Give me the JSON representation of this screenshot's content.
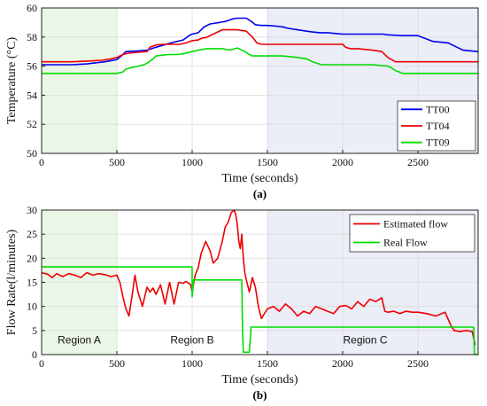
{
  "chart_data": [
    {
      "type": "line",
      "panel_label": "(a)",
      "xlabel": "Time (seconds)",
      "ylabel": "Temperature (°C)",
      "xlim": [
        0,
        2900
      ],
      "ylim": [
        50,
        60
      ],
      "xticks": [
        0,
        500,
        1000,
        1500,
        2000,
        2500
      ],
      "yticks": [
        50,
        52,
        54,
        56,
        58,
        60
      ],
      "grid": true,
      "legend_position": "lower-right",
      "shaded_regions": [
        {
          "x": [
            0,
            500
          ],
          "color": "#eaf7e6"
        },
        {
          "x": [
            1500,
            2900
          ],
          "color": "#ebedf7"
        }
      ],
      "series": [
        {
          "name": "TT00",
          "color": "#0000ee",
          "x": [
            0,
            100,
            200,
            300,
            420,
            500,
            540,
            560,
            640,
            700,
            760,
            860,
            940,
            980,
            1000,
            1040,
            1080,
            1120,
            1180,
            1230,
            1270,
            1300,
            1360,
            1390,
            1420,
            1460,
            1500,
            1560,
            1600,
            1640,
            1700,
            1760,
            1800,
            1850,
            1900,
            2000,
            2050,
            2100,
            2150,
            2200,
            2270,
            2300,
            2400,
            2500,
            2600,
            2700,
            2760,
            2800,
            2900
          ],
          "y": [
            56.1,
            56.1,
            56.1,
            56.15,
            56.3,
            56.45,
            56.8,
            57.0,
            57.05,
            57.1,
            57.3,
            57.6,
            57.8,
            58.1,
            58.2,
            58.3,
            58.7,
            58.9,
            59.0,
            59.1,
            59.25,
            59.3,
            59.3,
            59.1,
            58.85,
            58.8,
            58.8,
            58.75,
            58.7,
            58.6,
            58.5,
            58.4,
            58.35,
            58.3,
            58.3,
            58.2,
            58.2,
            58.2,
            58.2,
            58.2,
            58.2,
            58.15,
            58.1,
            58.1,
            57.7,
            57.6,
            57.3,
            57.1,
            57.0
          ]
        },
        {
          "name": "TT04",
          "color": "#ee0000",
          "x": [
            0,
            100,
            200,
            300,
            400,
            460,
            500,
            540,
            580,
            640,
            700,
            720,
            760,
            800,
            880,
            920,
            960,
            1000,
            1040,
            1060,
            1100,
            1160,
            1200,
            1260,
            1300,
            1360,
            1400,
            1430,
            1460,
            1500,
            1560,
            1600,
            1700,
            1800,
            1900,
            2000,
            2020,
            2050,
            2100,
            2200,
            2260,
            2300,
            2350,
            2400,
            2500,
            2600,
            2700,
            2800,
            2900
          ],
          "y": [
            56.3,
            56.3,
            56.3,
            56.35,
            56.4,
            56.5,
            56.6,
            56.8,
            56.9,
            56.95,
            57.0,
            57.3,
            57.45,
            57.5,
            57.5,
            57.5,
            57.6,
            57.75,
            57.8,
            57.9,
            58.0,
            58.3,
            58.5,
            58.5,
            58.5,
            58.4,
            58.0,
            57.6,
            57.5,
            57.5,
            57.5,
            57.5,
            57.5,
            57.5,
            57.5,
            57.5,
            57.3,
            57.2,
            57.2,
            57.1,
            57.0,
            56.6,
            56.3,
            56.3,
            56.3,
            56.3,
            56.3,
            56.3,
            56.3
          ]
        },
        {
          "name": "TT09",
          "color": "#00dd00",
          "x": [
            0,
            100,
            200,
            300,
            400,
            480,
            500,
            540,
            560,
            600,
            640,
            680,
            700,
            740,
            760,
            800,
            840,
            900,
            940,
            1000,
            1040,
            1100,
            1200,
            1250,
            1300,
            1350,
            1380,
            1400,
            1500,
            1600,
            1700,
            1760,
            1800,
            1860,
            1900,
            2000,
            2100,
            2200,
            2300,
            2320,
            2350,
            2400,
            2500,
            2600,
            2700,
            2800,
            2900
          ],
          "y": [
            55.5,
            55.5,
            55.5,
            55.5,
            55.5,
            55.5,
            55.5,
            55.6,
            55.8,
            55.9,
            56.0,
            56.1,
            56.2,
            56.5,
            56.7,
            56.75,
            56.8,
            56.8,
            56.85,
            57.0,
            57.1,
            57.2,
            57.2,
            57.1,
            57.25,
            57.0,
            56.8,
            56.7,
            56.7,
            56.7,
            56.6,
            56.5,
            56.3,
            56.1,
            56.1,
            56.1,
            56.1,
            56.1,
            56.0,
            55.9,
            55.7,
            55.5,
            55.5,
            55.5,
            55.5,
            55.5,
            55.5
          ]
        }
      ]
    },
    {
      "type": "line",
      "panel_label": "(b)",
      "xlabel": "Time (seconds)",
      "ylabel": "Flow Rate(l/minutes)",
      "xlim": [
        0,
        2900
      ],
      "ylim": [
        0,
        30
      ],
      "xticks": [
        0,
        500,
        1000,
        1500,
        2000,
        2500
      ],
      "yticks": [
        0,
        5,
        10,
        15,
        20,
        25,
        30
      ],
      "grid": true,
      "legend_position": "top-right",
      "shaded_regions": [
        {
          "x": [
            0,
            500
          ],
          "color": "#eaf7e6"
        },
        {
          "x": [
            1500,
            2900
          ],
          "color": "#ebedf7"
        }
      ],
      "annotations": [
        {
          "text": "Region A",
          "x": 250,
          "y": 3
        },
        {
          "text": "Region B",
          "x": 1000,
          "y": 3
        },
        {
          "text": "Region C",
          "x": 2150,
          "y": 3
        }
      ],
      "series": [
        {
          "name": "Estimated flow",
          "color": "#ee0000",
          "x": [
            0,
            40,
            70,
            100,
            140,
            180,
            220,
            260,
            300,
            340,
            380,
            420,
            460,
            500,
            520,
            540,
            560,
            580,
            600,
            620,
            640,
            670,
            700,
            720,
            740,
            760,
            790,
            820,
            850,
            880,
            910,
            940,
            960,
            990,
            1000,
            1020,
            1040,
            1060,
            1090,
            1120,
            1140,
            1170,
            1200,
            1220,
            1240,
            1260,
            1280,
            1290,
            1300,
            1310,
            1320,
            1330,
            1340,
            1350,
            1360,
            1380,
            1400,
            1420,
            1440,
            1460,
            1480,
            1500,
            1540,
            1580,
            1620,
            1660,
            1700,
            1740,
            1780,
            1820,
            1860,
            1900,
            1940,
            1980,
            2020,
            2060,
            2100,
            2140,
            2180,
            2220,
            2260,
            2280,
            2300,
            2340,
            2380,
            2420,
            2460,
            2500,
            2560,
            2620,
            2680,
            2720,
            2740,
            2780,
            2820,
            2860,
            2880
          ],
          "y": [
            17.0,
            16.7,
            16.0,
            16.8,
            16.2,
            16.8,
            16.5,
            16.0,
            17.0,
            16.5,
            16.8,
            16.6,
            16.2,
            16.5,
            15.0,
            12.0,
            9.5,
            8.0,
            12.0,
            16.5,
            13.0,
            10.0,
            14.0,
            13.0,
            13.8,
            12.5,
            14.5,
            10.5,
            15.0,
            10.5,
            15.0,
            14.8,
            15.2,
            14.5,
            13.0,
            16.5,
            18.0,
            21.0,
            23.5,
            21.5,
            19.0,
            20.0,
            23.5,
            26.5,
            27.5,
            29.5,
            30.0,
            29.0,
            27.0,
            23.5,
            22.0,
            25.0,
            20.0,
            17.0,
            15.5,
            13.0,
            16.0,
            14.0,
            10.0,
            7.5,
            8.5,
            9.5,
            10.0,
            9.0,
            10.5,
            9.5,
            8.0,
            9.0,
            8.5,
            10.0,
            9.5,
            9.0,
            8.5,
            10.0,
            10.2,
            9.5,
            11.0,
            10.0,
            11.5,
            11.0,
            11.8,
            9.0,
            8.8,
            9.0,
            8.5,
            9.0,
            8.8,
            8.8,
            8.5,
            8.0,
            8.8,
            6.0,
            5.0,
            4.8,
            5.0,
            4.8,
            2.0
          ]
        },
        {
          "name": "Real Flow",
          "color": "#00dd00",
          "x": [
            0,
            1000,
            1000,
            1010,
            1010,
            1330,
            1335,
            1340,
            1380,
            1390,
            1390,
            2870,
            2875,
            2900
          ],
          "y": [
            18.2,
            18.2,
            12.0,
            15.5,
            15.5,
            15.5,
            5.0,
            0.5,
            0.5,
            5.0,
            5.7,
            5.7,
            0.0,
            0.0
          ]
        }
      ]
    }
  ]
}
